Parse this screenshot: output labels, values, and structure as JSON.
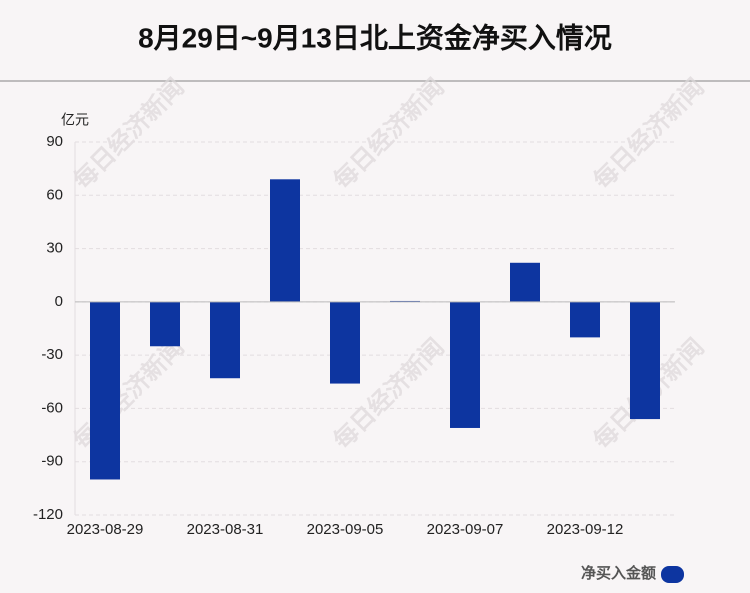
{
  "chart_data": {
    "type": "bar",
    "title": "8月29日~9月13日北上资金净买入情况",
    "y_unit": "亿元",
    "watermark": "每日经济新闻",
    "categories": [
      "2023-08-29",
      null,
      "2023-08-31",
      null,
      "2023-09-05",
      null,
      "2023-09-07",
      null,
      "2023-09-12",
      null
    ],
    "series": [
      {
        "name": "净买入金额",
        "color": "#0d35a0",
        "values": [
          -100,
          -25,
          -43,
          69,
          -46,
          0.5,
          -71,
          22,
          -20,
          -66
        ]
      }
    ],
    "ylim": [
      -120,
      90
    ],
    "yticks": [
      -120,
      -90,
      -60,
      -30,
      0,
      30,
      60,
      90
    ],
    "grid": true,
    "legend": "bottom-right"
  }
}
